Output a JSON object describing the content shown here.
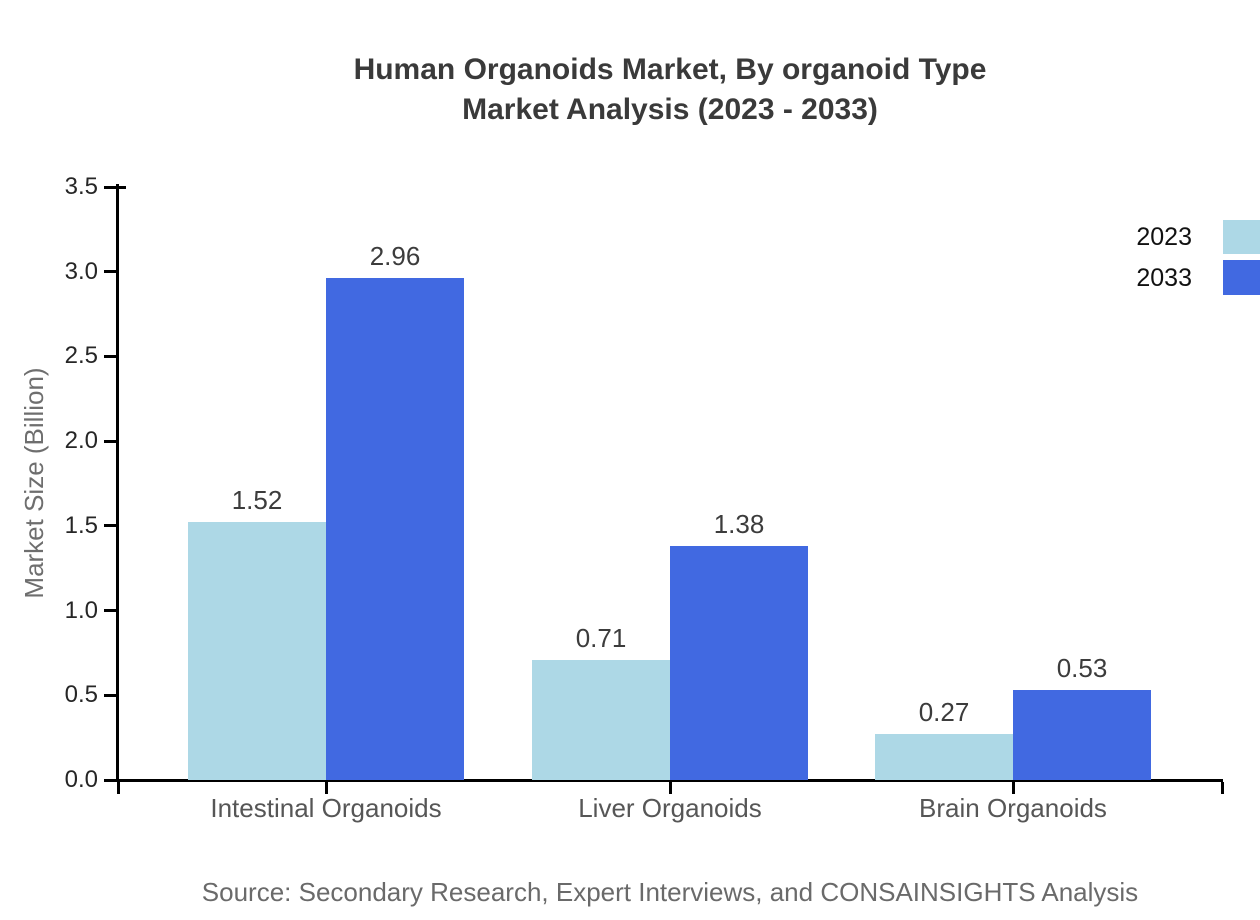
{
  "title": {
    "line1": "Human Organoids Market, By organoid Type",
    "line2": "Market Analysis (2023 - 2033)"
  },
  "source_note": "Source: Secondary Research, Expert Interviews, and CONSAINSIGHTS Analysis",
  "chart_data": {
    "type": "bar",
    "title": "Human Organoids Market, By organoid Type Market Analysis (2023 - 2033)",
    "categories": [
      "Intestinal Organoids",
      "Liver Organoids",
      "Brain Organoids"
    ],
    "series": [
      {
        "name": "2023",
        "color": "#add8e6",
        "values": [
          1.52,
          0.71,
          0.27
        ]
      },
      {
        "name": "2033",
        "color": "#4169e1",
        "values": [
          2.96,
          1.38,
          0.53
        ]
      }
    ],
    "xlabel": "",
    "ylabel": "Market Size (Billion)",
    "ylim": [
      0.0,
      3.5
    ],
    "yticks": [
      0.0,
      0.5,
      1.0,
      1.5,
      2.0,
      2.5,
      3.0,
      3.5
    ],
    "ytick_decimals": 1,
    "value_label_decimals": 2,
    "grid": false,
    "value_labels": true,
    "legend": {
      "position": "top-right-edge",
      "entries": [
        "2023",
        "2033"
      ]
    }
  },
  "colors": {
    "bar_2023": "#add8e6",
    "bar_2033": "#4169e1",
    "title_text": "#3a3a3a",
    "tick_label": "#262626",
    "value_label": "#3c3c3c",
    "category_label": "#565656",
    "axis_title": "#6e6e6e",
    "source_text": "#6a6a6a",
    "axis_line": "#000000",
    "background": "#ffffff"
  }
}
